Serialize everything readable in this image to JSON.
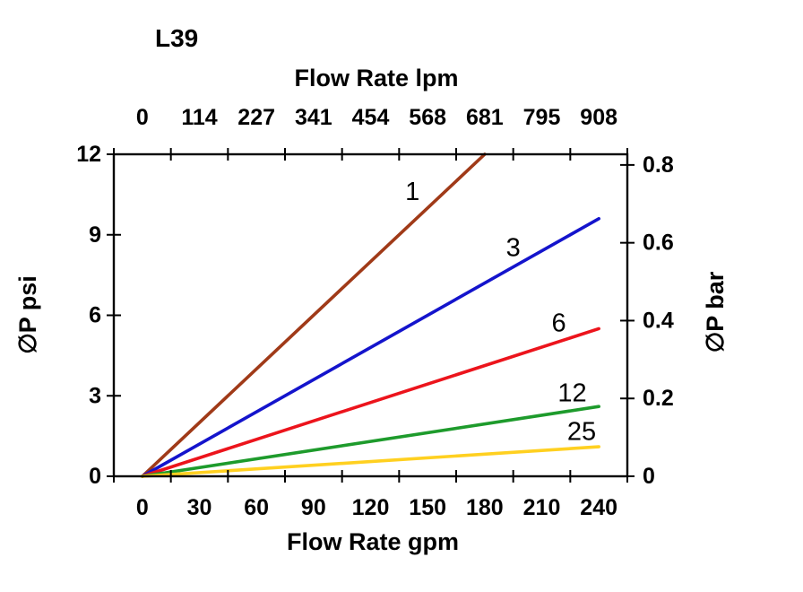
{
  "chart_data": {
    "type": "line",
    "title": "L39",
    "grid": "off",
    "legend_position": "inline-labels",
    "axes": {
      "top": {
        "label": "Flow Rate lpm",
        "tick_labels": [
          "0",
          "114",
          "227",
          "341",
          "454",
          "568",
          "681",
          "795",
          "908"
        ]
      },
      "bottom": {
        "label": "Flow Rate gpm",
        "tick_labels": [
          "0",
          "30",
          "60",
          "90",
          "120",
          "150",
          "180",
          "210",
          "240"
        ],
        "values": [
          0,
          30,
          60,
          90,
          120,
          150,
          180,
          210,
          240
        ]
      },
      "left": {
        "label": "∅P psi",
        "tick_labels": [
          "0",
          "3",
          "6",
          "9",
          "12"
        ],
        "values": [
          0,
          3,
          6,
          9,
          12
        ],
        "range": [
          0,
          12
        ]
      },
      "right": {
        "label": "∅P bar",
        "tick_labels": [
          "0",
          "0.2",
          "0.4",
          "0.6",
          "0.8"
        ],
        "values": [
          0,
          0.2,
          0.4,
          0.6,
          0.8
        ],
        "range": [
          0,
          0.8274
        ]
      }
    },
    "series": [
      {
        "name": "1",
        "color": "#A03A18",
        "points_gpm_psi": [
          [
            0,
            0
          ],
          [
            180,
            12
          ]
        ],
        "label_at_gpm_psi": [
          142,
          10.6
        ]
      },
      {
        "name": "3",
        "color": "#1414CC",
        "points_gpm_psi": [
          [
            0,
            0
          ],
          [
            240,
            9.6
          ]
        ],
        "label_at_gpm_psi": [
          195,
          8.5
        ]
      },
      {
        "name": "6",
        "color": "#EC141C",
        "points_gpm_psi": [
          [
            0,
            0
          ],
          [
            240,
            5.5
          ]
        ],
        "label_at_gpm_psi": [
          219,
          5.7
        ]
      },
      {
        "name": "12",
        "color": "#1E9B2C",
        "points_gpm_psi": [
          [
            0,
            0
          ],
          [
            240,
            2.6
          ]
        ],
        "label_at_gpm_psi": [
          226,
          3.1
        ]
      },
      {
        "name": "25",
        "color": "#FFD020",
        "points_gpm_psi": [
          [
            0,
            0
          ],
          [
            240,
            1.1
          ]
        ],
        "label_at_gpm_psi": [
          231,
          1.65
        ]
      }
    ],
    "colors": {
      "axis": "#000000",
      "background": "#ffffff"
    }
  }
}
